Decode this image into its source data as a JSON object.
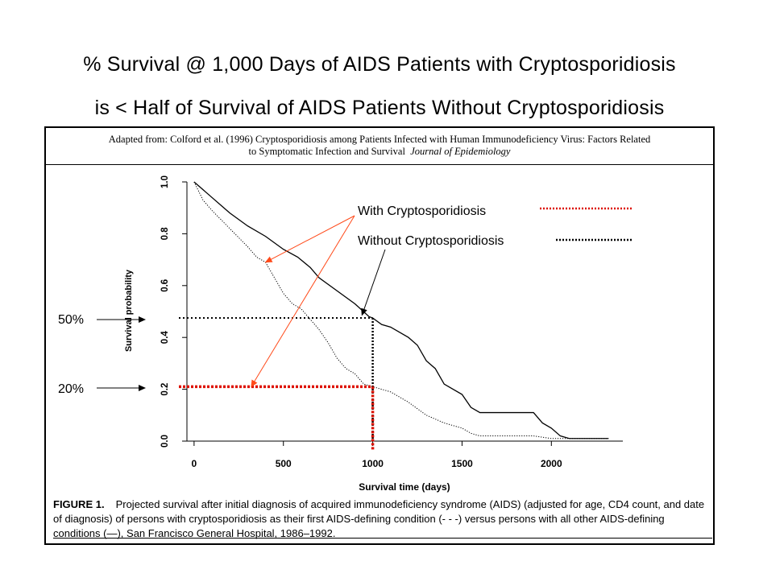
{
  "slide": {
    "title_line1": "% Survival @ 1,000 Days of AIDS Patients with Cryptosporidiosis",
    "title_line2": "is < Half of Survival of AIDS Patients Without Cryptosporidiosis",
    "source_line1": "Adapted from: Colford et al. (1996) Cryptosporidiosis among Patients Infected with Human Immunodeficiency Virus: Factors Related",
    "source_line2": "to Symptomatic Infection  and Survival",
    "source_journal": "Journal of Epidemiology"
  },
  "figure": {
    "label": "FIGURE 1.",
    "caption": "Projected survival after initial diagnosis of acquired immunodeficiency syndrome (AIDS) (adjusted for age, CD4 count, and date of diagnosis) of persons with cryptosporidiosis as their first AIDS-defining condition (- - -) versus persons with all other AIDS-defining conditions (—), San Francisco General Hospital, 1986–1992."
  },
  "colors": {
    "with_crypto": "#dd1100",
    "without_crypto": "#000000",
    "arrow": "#ff4a1a"
  },
  "chart_data": {
    "type": "line",
    "title": "",
    "xlabel": "Survival time (days)",
    "ylabel": "Survival probability",
    "xlim": [
      -40,
      2400
    ],
    "ylim": [
      0,
      1.0
    ],
    "x_ticks": [
      "0",
      "500",
      "1000",
      "1500",
      "2000"
    ],
    "y_ticks": [
      "0.0",
      "0.2",
      "0.4",
      "0.6",
      "0.8",
      "1.0"
    ],
    "series": [
      {
        "name": "Without Cryptosporidiosis",
        "style": "solid",
        "x": [
          0,
          50,
          100,
          200,
          300,
          400,
          500,
          580,
          650,
          700,
          800,
          900,
          980,
          1000,
          1050,
          1100,
          1200,
          1250,
          1300,
          1350,
          1400,
          1500,
          1550,
          1600,
          1700,
          1800,
          1900,
          1950,
          2000,
          2050,
          2100,
          2320
        ],
        "y": [
          1.0,
          0.97,
          0.94,
          0.88,
          0.83,
          0.79,
          0.74,
          0.71,
          0.67,
          0.63,
          0.58,
          0.53,
          0.48,
          0.475,
          0.45,
          0.44,
          0.4,
          0.37,
          0.31,
          0.28,
          0.22,
          0.18,
          0.13,
          0.11,
          0.11,
          0.11,
          0.11,
          0.07,
          0.05,
          0.02,
          0.01,
          0.01
        ]
      },
      {
        "name": "With Cryptosporidiosis",
        "style": "dotted",
        "x": [
          0,
          50,
          100,
          200,
          300,
          350,
          400,
          450,
          500,
          550,
          600,
          650,
          700,
          750,
          800,
          850,
          900,
          950,
          1000,
          1100,
          1200,
          1300,
          1400,
          1500,
          1550,
          1600,
          1700,
          1800,
          1900,
          2000,
          2050,
          2100,
          2320
        ],
        "y": [
          1.0,
          0.93,
          0.89,
          0.82,
          0.75,
          0.71,
          0.69,
          0.63,
          0.57,
          0.53,
          0.51,
          0.47,
          0.43,
          0.38,
          0.32,
          0.28,
          0.26,
          0.22,
          0.21,
          0.19,
          0.15,
          0.1,
          0.07,
          0.05,
          0.03,
          0.02,
          0.02,
          0.02,
          0.02,
          0.01,
          0.01,
          0.01,
          0.01
        ]
      }
    ],
    "annotations": {
      "label_50": "50%",
      "label_20": "20%",
      "legend_with": "With Cryptosporidiosis",
      "legend_without": "Without Cryptosporidiosis",
      "ref_day": 1000,
      "ref_without_y": 0.475,
      "ref_with_y": 0.21,
      "arrow_with_targets": [
        [
          400,
          0.69
        ],
        [
          320,
          0.21
        ]
      ],
      "arrow_without_target": [
        940,
        0.48
      ]
    }
  }
}
